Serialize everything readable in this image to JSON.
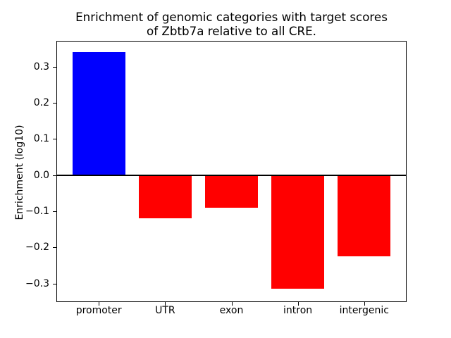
{
  "figure": {
    "title_line1": "Enrichment of genomic categories with target scores",
    "title_line2": "of Zbtb7a relative to all CRE.",
    "ylabel": "Enrichment (log10)"
  },
  "chart_data": {
    "type": "bar",
    "title": "Enrichment of genomic categories with target scores\nof Zbtb7a relative to all CRE.",
    "xlabel": "",
    "ylabel": "Enrichment (log10)",
    "categories": [
      "promoter",
      "UTR",
      "exon",
      "intron",
      "intergenic"
    ],
    "values": [
      0.34,
      -0.12,
      -0.09,
      -0.315,
      -0.225
    ],
    "bar_colors": [
      "#0000ff",
      "#ff0000",
      "#ff0000",
      "#ff0000",
      "#ff0000"
    ],
    "yticks": [
      0.3,
      0.2,
      0.1,
      0.0,
      -0.1,
      -0.2,
      -0.3
    ],
    "ytick_labels": [
      "0.3",
      "0.2",
      "0.1",
      "0.0",
      "−0.1",
      "−0.2",
      "−0.3"
    ],
    "ylim": [
      -0.351,
      0.371
    ],
    "xlim": [
      -0.64,
      4.64
    ],
    "bar_width": 0.8,
    "grid": false,
    "legend_position": null,
    "zero_line": true,
    "colors": {
      "positive": "#0000ff",
      "negative": "#ff0000",
      "axis": "#000000",
      "background": "#ffffff"
    }
  }
}
